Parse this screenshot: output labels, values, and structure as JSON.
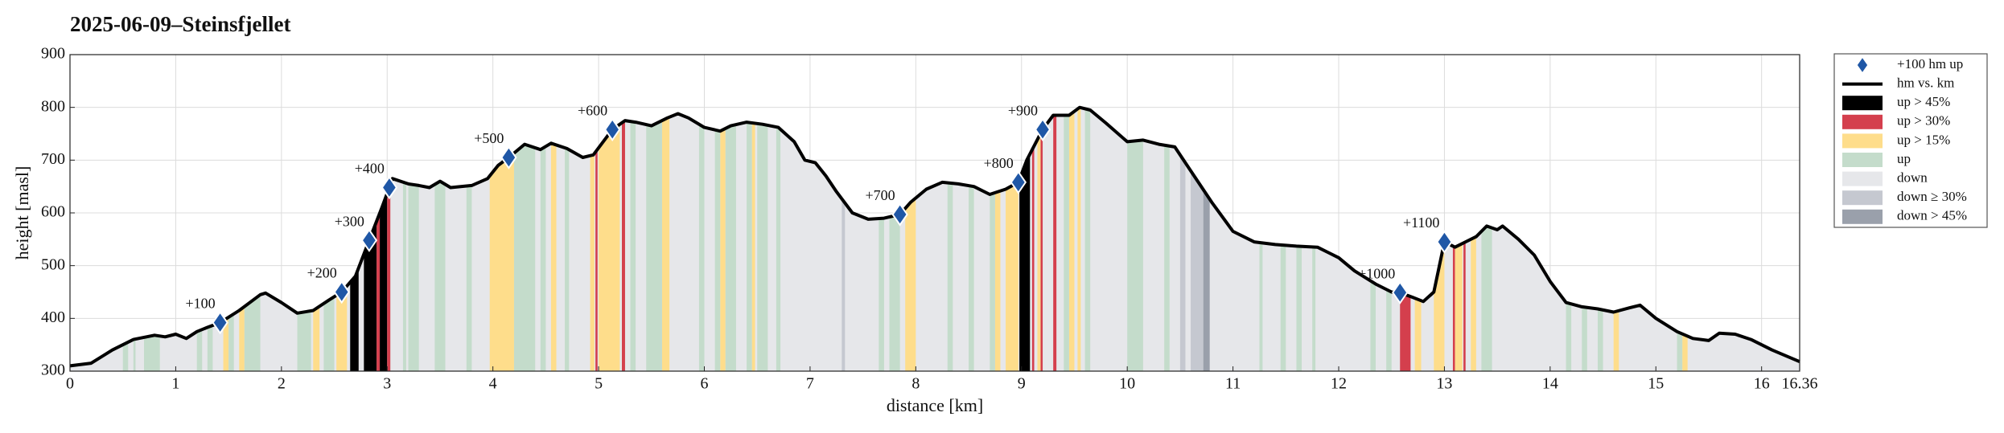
{
  "chart_data": {
    "type": "elevation-profile",
    "title": "2025-06-09–Steinsfjellet",
    "xlabel": "distance [km]",
    "ylabel": "height [masl]",
    "xlim": [
      0,
      16.36
    ],
    "xticks": [
      0,
      1,
      2,
      3,
      4,
      5,
      6,
      7,
      8,
      9,
      10,
      11,
      12,
      13,
      14,
      15,
      16,
      16.36
    ],
    "ylim": [
      300,
      900
    ],
    "yticks": [
      300,
      400,
      500,
      600,
      700,
      800,
      900
    ],
    "grid": true,
    "legend": "outside right",
    "markers": {
      "name": "+100 hm up",
      "color": "#1f57a6",
      "x": [
        1.42,
        2.57,
        2.83,
        3.02,
        4.15,
        5.13,
        7.85,
        8.97,
        9.2,
        12.58,
        13.0
      ],
      "values": [
        392,
        450,
        548,
        648,
        705,
        758,
        597,
        658,
        758,
        449,
        545
      ],
      "labels": [
        "+100",
        "+200",
        "+300",
        "+400",
        "+500",
        "+600",
        "+700",
        "+800",
        "+900",
        "+1000",
        "+1100"
      ]
    },
    "series": [
      {
        "name": "hm vs. km",
        "color": "#000000",
        "x": [
          0,
          0.2,
          0.4,
          0.6,
          0.8,
          0.9,
          1.0,
          1.1,
          1.2,
          1.3,
          1.42,
          1.6,
          1.8,
          1.85,
          2.0,
          2.15,
          2.3,
          2.45,
          2.57,
          2.7,
          2.83,
          2.95,
          3.02,
          3.05,
          3.2,
          3.3,
          3.4,
          3.5,
          3.6,
          3.8,
          3.95,
          4.05,
          4.15,
          4.3,
          4.45,
          4.55,
          4.7,
          4.85,
          4.95,
          5.13,
          5.25,
          5.35,
          5.5,
          5.65,
          5.75,
          5.85,
          6.0,
          6.15,
          6.25,
          6.4,
          6.55,
          6.7,
          6.85,
          6.95,
          7.05,
          7.15,
          7.25,
          7.4,
          7.55,
          7.7,
          7.85,
          7.95,
          8.1,
          8.25,
          8.4,
          8.55,
          8.7,
          8.85,
          8.97,
          9.05,
          9.2,
          9.3,
          9.45,
          9.55,
          9.65,
          9.8,
          10.0,
          10.15,
          10.3,
          10.45,
          10.6,
          10.8,
          11.0,
          11.2,
          11.4,
          11.6,
          11.8,
          12.0,
          12.15,
          12.35,
          12.5,
          12.58,
          12.7,
          12.8,
          12.9,
          13.0,
          13.1,
          13.2,
          13.3,
          13.4,
          13.5,
          13.55,
          13.7,
          13.85,
          14.0,
          14.15,
          14.3,
          14.45,
          14.6,
          14.75,
          14.85,
          15.0,
          15.2,
          15.35,
          15.5,
          15.6,
          15.75,
          15.9,
          16.1,
          16.36
        ],
        "values": [
          310,
          315,
          340,
          360,
          368,
          365,
          370,
          362,
          375,
          383,
          392,
          415,
          445,
          448,
          430,
          410,
          415,
          435,
          450,
          480,
          548,
          610,
          648,
          665,
          655,
          652,
          648,
          660,
          648,
          652,
          665,
          690,
          705,
          730,
          720,
          732,
          722,
          705,
          710,
          758,
          775,
          772,
          765,
          780,
          788,
          780,
          762,
          755,
          765,
          772,
          768,
          762,
          735,
          700,
          695,
          670,
          640,
          600,
          588,
          590,
          597,
          620,
          645,
          658,
          655,
          650,
          635,
          645,
          658,
          700,
          758,
          785,
          785,
          800,
          795,
          770,
          735,
          738,
          730,
          725,
          680,
          620,
          565,
          545,
          540,
          537,
          535,
          515,
          490,
          465,
          450,
          449,
          440,
          432,
          450,
          545,
          535,
          545,
          555,
          575,
          568,
          575,
          550,
          520,
          470,
          430,
          422,
          418,
          412,
          420,
          425,
          400,
          375,
          362,
          358,
          372,
          370,
          360,
          340,
          318
        ]
      },
      {
        "name": "up > 45%",
        "color": "#000000",
        "ranges": [
          [
            2.65,
            2.73
          ],
          [
            2.78,
            2.9
          ],
          [
            2.93,
            3.0
          ],
          [
            8.98,
            9.08
          ]
        ]
      },
      {
        "name": "up > 30%",
        "color": "#d43f4d",
        "ranges": [
          [
            2.9,
            2.93
          ],
          [
            3.0,
            3.03
          ],
          [
            4.97,
            4.99
          ],
          [
            5.22,
            5.25
          ],
          [
            9.1,
            9.12
          ],
          [
            9.18,
            9.2
          ],
          [
            9.3,
            9.33
          ],
          [
            12.58,
            12.68
          ],
          [
            13.08,
            13.1
          ],
          [
            13.18,
            13.2
          ]
        ]
      },
      {
        "name": "up > 15%",
        "color": "#fedd8b",
        "ranges": [
          [
            1.45,
            1.5
          ],
          [
            1.6,
            1.65
          ],
          [
            2.3,
            2.36
          ],
          [
            2.52,
            2.62
          ],
          [
            3.97,
            4.2
          ],
          [
            4.55,
            4.6
          ],
          [
            4.92,
            4.96
          ],
          [
            5.0,
            5.2
          ],
          [
            5.6,
            5.67
          ],
          [
            6.15,
            6.2
          ],
          [
            6.45,
            6.48
          ],
          [
            7.9,
            8.0
          ],
          [
            8.75,
            8.8
          ],
          [
            8.85,
            8.97
          ],
          [
            9.15,
            9.18
          ],
          [
            9.45,
            9.5
          ],
          [
            9.53,
            9.56
          ],
          [
            12.72,
            12.78
          ],
          [
            12.9,
            13.0
          ],
          [
            13.1,
            13.17
          ],
          [
            13.25,
            13.3
          ],
          [
            14.6,
            14.65
          ],
          [
            15.25,
            15.3
          ]
        ]
      },
      {
        "name": "up",
        "color": "#c4dccb",
        "ranges": [
          [
            0.5,
            0.55
          ],
          [
            0.6,
            0.62
          ],
          [
            0.7,
            0.85
          ],
          [
            1.2,
            1.25
          ],
          [
            1.3,
            1.35
          ],
          [
            1.5,
            1.55
          ],
          [
            1.65,
            1.8
          ],
          [
            2.15,
            2.28
          ],
          [
            2.4,
            2.5
          ],
          [
            3.15,
            3.18
          ],
          [
            3.2,
            3.3
          ],
          [
            3.45,
            3.55
          ],
          [
            3.75,
            3.8
          ],
          [
            4.2,
            4.4
          ],
          [
            4.45,
            4.5
          ],
          [
            4.68,
            4.72
          ],
          [
            5.3,
            5.35
          ],
          [
            5.45,
            5.6
          ],
          [
            5.95,
            6.0
          ],
          [
            6.1,
            6.15
          ],
          [
            6.2,
            6.3
          ],
          [
            6.4,
            6.45
          ],
          [
            6.5,
            6.6
          ],
          [
            6.68,
            6.72
          ],
          [
            7.65,
            7.7
          ],
          [
            7.75,
            7.85
          ],
          [
            8.3,
            8.35
          ],
          [
            8.5,
            8.55
          ],
          [
            8.7,
            8.75
          ],
          [
            9.4,
            9.45
          ],
          [
            9.6,
            9.65
          ],
          [
            10.0,
            10.15
          ],
          [
            10.35,
            10.4
          ],
          [
            11.25,
            11.28
          ],
          [
            11.45,
            11.5
          ],
          [
            11.6,
            11.65
          ],
          [
            11.75,
            11.78
          ],
          [
            12.3,
            12.35
          ],
          [
            12.45,
            12.5
          ],
          [
            13.35,
            13.45
          ],
          [
            14.15,
            14.2
          ],
          [
            14.3,
            14.35
          ],
          [
            14.45,
            14.5
          ],
          [
            15.2,
            15.25
          ]
        ]
      },
      {
        "name": "down",
        "color": "#e6e7ea",
        "ranges": [
          [
            0,
            16.36
          ]
        ]
      },
      {
        "name": "down ≥ 30%",
        "color": "#c5c8d0",
        "ranges": [
          [
            7.3,
            7.33
          ],
          [
            10.5,
            10.55
          ],
          [
            10.6,
            10.75
          ]
        ]
      },
      {
        "name": "down > 45%",
        "color": "#9aa0ab",
        "ranges": [
          [
            10.72,
            10.78
          ]
        ]
      }
    ]
  }
}
